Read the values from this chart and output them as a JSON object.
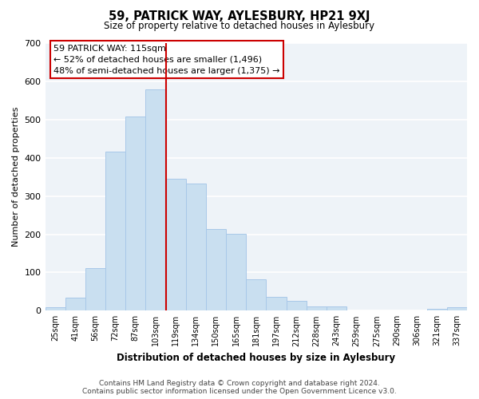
{
  "title": "59, PATRICK WAY, AYLESBURY, HP21 9XJ",
  "subtitle": "Size of property relative to detached houses in Aylesbury",
  "xlabel": "Distribution of detached houses by size in Aylesbury",
  "ylabel": "Number of detached properties",
  "categories": [
    "25sqm",
    "41sqm",
    "56sqm",
    "72sqm",
    "87sqm",
    "103sqm",
    "119sqm",
    "134sqm",
    "150sqm",
    "165sqm",
    "181sqm",
    "197sqm",
    "212sqm",
    "228sqm",
    "243sqm",
    "259sqm",
    "275sqm",
    "290sqm",
    "306sqm",
    "321sqm",
    "337sqm"
  ],
  "values": [
    8,
    35,
    112,
    416,
    507,
    578,
    345,
    333,
    213,
    202,
    82,
    37,
    25,
    12,
    12,
    0,
    0,
    0,
    0,
    5,
    8
  ],
  "bar_color": "#c9dff0",
  "bar_edge_color": "#a8c8e8",
  "vline_color": "#cc0000",
  "annotation_title": "59 PATRICK WAY: 115sqm",
  "annotation_line1": "← 52% of detached houses are smaller (1,496)",
  "annotation_line2": "48% of semi-detached houses are larger (1,375) →",
  "annotation_box_color": "white",
  "annotation_box_edge": "#cc0000",
  "ylim": [
    0,
    700
  ],
  "yticks": [
    0,
    100,
    200,
    300,
    400,
    500,
    600,
    700
  ],
  "footer1": "Contains HM Land Registry data © Crown copyright and database right 2024.",
  "footer2": "Contains public sector information licensed under the Open Government Licence v3.0.",
  "bg_color": "#ffffff",
  "plot_bg_color": "#eef3f8",
  "grid_color": "#ffffff"
}
